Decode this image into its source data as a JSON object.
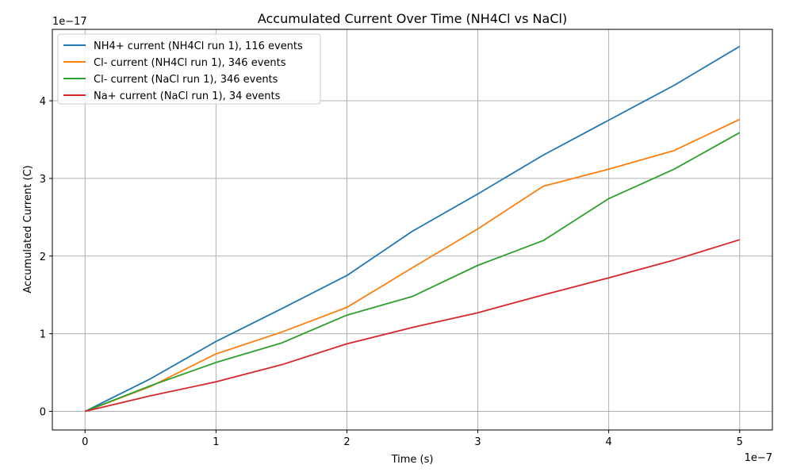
{
  "chart_data": {
    "type": "line",
    "title": "Accumulated Current Over Time (NH4Cl vs NaCl)",
    "xlabel": "Time (s)",
    "ylabel": "Accumulated Current (C)",
    "x_offset_label": "1e−7",
    "y_offset_label": "1e−17",
    "x_ticks": [
      "0",
      "1",
      "2",
      "3",
      "4",
      "5"
    ],
    "y_ticks": [
      "0",
      "1",
      "2",
      "3",
      "4"
    ],
    "xlim": [
      -0.25,
      5.25
    ],
    "ylim": [
      -0.24,
      4.92
    ],
    "grid": true,
    "legend_position": "top-left",
    "x": [
      0,
      0.5,
      1.0,
      1.5,
      2.0,
      2.5,
      3.0,
      3.5,
      4.0,
      4.5,
      5.0
    ],
    "series": [
      {
        "name": "NH4+ current (NH4Cl run 1), 116 events",
        "color": "#1f77b4",
        "values": [
          0,
          0.42,
          0.9,
          1.32,
          1.75,
          2.32,
          2.8,
          3.3,
          3.75,
          4.2,
          4.7
        ]
      },
      {
        "name": "Cl- current (NH4Cl run 1), 346 events",
        "color": "#ff7f0e",
        "values": [
          0,
          0.32,
          0.74,
          1.02,
          1.34,
          1.85,
          2.35,
          2.9,
          3.12,
          3.36,
          3.76
        ]
      },
      {
        "name": "Cl- current (NaCl run 1), 346 events",
        "color": "#2ca02c",
        "values": [
          0,
          0.33,
          0.63,
          0.88,
          1.24,
          1.48,
          1.88,
          2.2,
          2.74,
          3.12,
          3.59
        ]
      },
      {
        "name": "Na+ current (NaCl run 1), 34 events",
        "color": "#d62728",
        "values": [
          0,
          0.2,
          0.38,
          0.6,
          0.87,
          1.08,
          1.27,
          1.5,
          1.72,
          1.95,
          2.21
        ]
      }
    ]
  }
}
